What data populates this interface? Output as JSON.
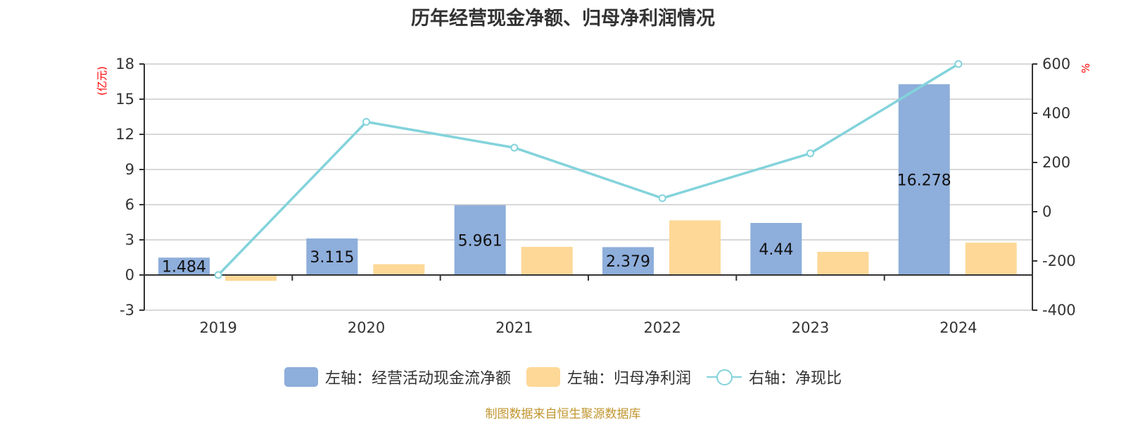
{
  "title": "历年经营现金净额、归母净利润情况",
  "footer": "制图数据来自恒生聚源数据库",
  "colors": {
    "operating_cash": "#8eaedb",
    "net_profit": "#fed897",
    "cash_ratio": "#83d3db",
    "axis": "#333333",
    "grid": "#cccccc",
    "unit": "#ff0000"
  },
  "legend": [
    {
      "label": "左轴：经营活动现金流净额",
      "type": "bar",
      "color": "#8eaedb"
    },
    {
      "label": "左轴：归母净利润",
      "type": "bar",
      "color": "#fed897"
    },
    {
      "label": "右轴：净现比",
      "type": "line",
      "color": "#83d3db"
    }
  ],
  "chart_data": {
    "type": "bar",
    "title": "历年经营现金净额、归母净利润情况",
    "categories": [
      "2019",
      "2020",
      "2021",
      "2022",
      "2023",
      "2024"
    ],
    "series": [
      {
        "name": "左轴：经营活动现金流净额",
        "axis": "left",
        "type": "bar",
        "values": [
          1.484,
          3.115,
          5.961,
          2.379,
          4.44,
          16.278
        ],
        "labels_shown": true
      },
      {
        "name": "左轴：归母净利润",
        "axis": "left",
        "type": "bar",
        "values": [
          -0.5,
          0.92,
          2.4,
          4.66,
          1.98,
          2.76
        ],
        "labels_shown": false
      },
      {
        "name": "右轴：净现比",
        "axis": "right",
        "type": "line",
        "values": [
          -257,
          365,
          260,
          55,
          237,
          600
        ]
      }
    ],
    "left_axis": {
      "unit": "(亿元)",
      "range": [
        -3,
        18
      ],
      "ticks": [
        -3,
        0,
        3,
        6,
        9,
        12,
        15,
        18
      ]
    },
    "right_axis": {
      "unit": "%",
      "range": [
        -400,
        600
      ],
      "ticks": [
        -400,
        -200,
        0,
        200,
        400,
        600
      ]
    },
    "xlabel": "",
    "ylabel": "(亿元)",
    "ylabel_right": "%",
    "grid": true,
    "legend_position": "bottom"
  }
}
